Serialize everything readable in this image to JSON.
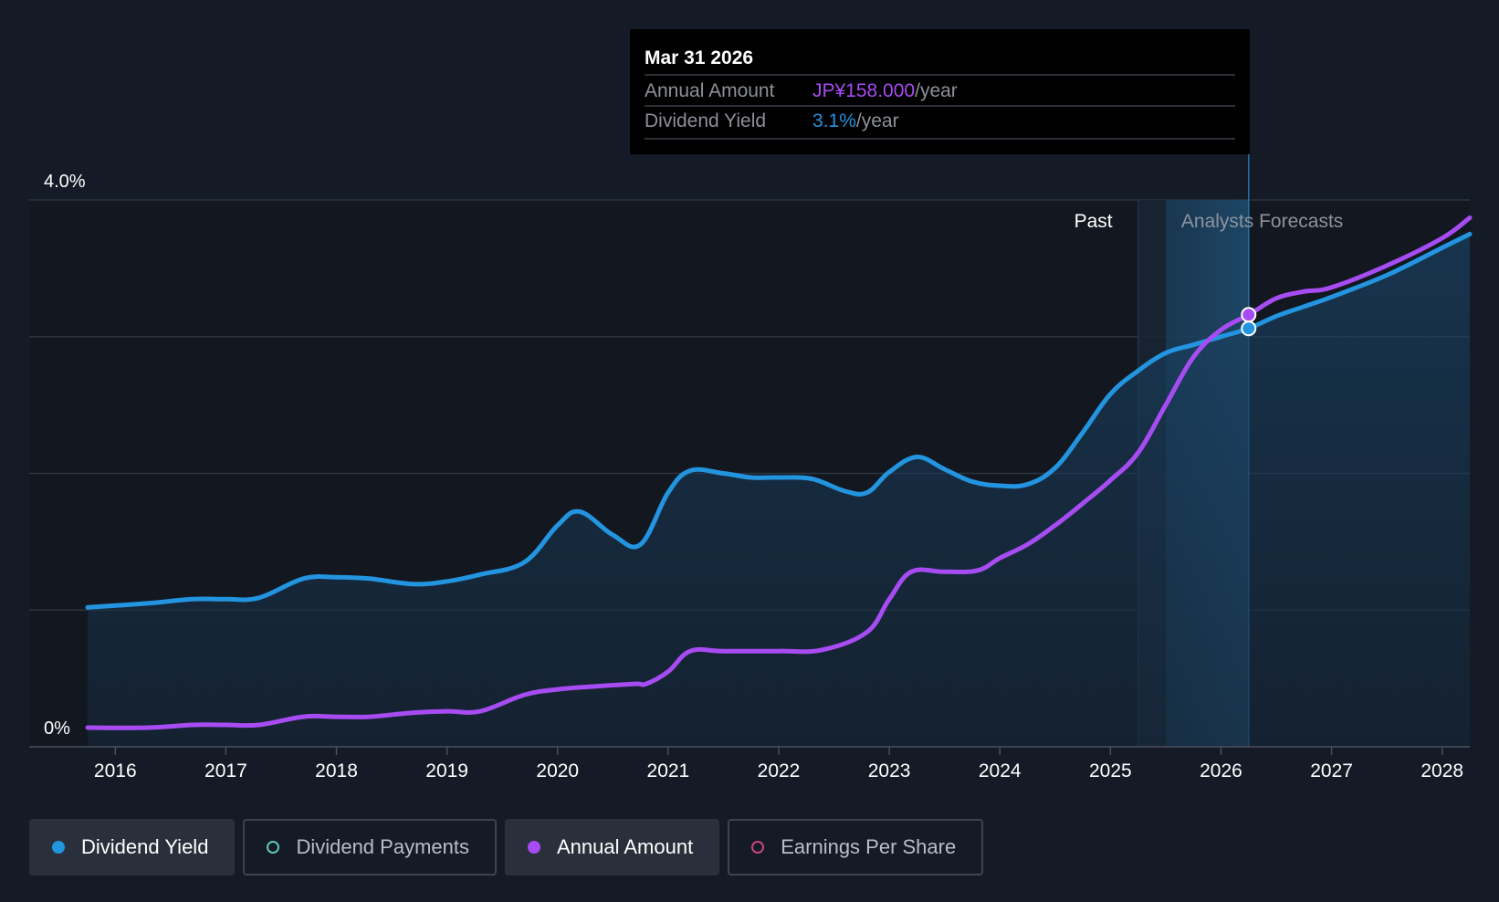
{
  "tooltip": {
    "date": "Mar 31 2026",
    "rows": [
      {
        "label": "Annual Amount",
        "value": "JP¥158.000",
        "suffix": "/year",
        "color": "#a64cf2"
      },
      {
        "label": "Dividend Yield",
        "value": "3.1%",
        "suffix": "/year",
        "color": "#2394df"
      }
    ]
  },
  "region_labels": {
    "past": "Past",
    "forecast": "Analysts Forecasts"
  },
  "legend": [
    {
      "label": "Dividend Yield",
      "color": "#2394df",
      "active": true
    },
    {
      "label": "Dividend Payments",
      "color": "#5fc7b7",
      "active": false
    },
    {
      "label": "Annual Amount",
      "color": "#a64cf2",
      "active": true
    },
    {
      "label": "Earnings Per Share",
      "color": "#c4457a",
      "active": false
    }
  ],
  "chart_data": {
    "type": "line",
    "title": "",
    "xlabel": "",
    "ylabel": "",
    "ylim": [
      0,
      4.0
    ],
    "y_ticks": [
      {
        "value": 0,
        "label": "0%"
      },
      {
        "value": 4.0,
        "label": "4.0%"
      }
    ],
    "y_gridlines": [
      1.0,
      2.0,
      3.0,
      4.0
    ],
    "xlim": [
      2015.75,
      2028.25
    ],
    "x_ticks": [
      "2016",
      "2017",
      "2018",
      "2019",
      "2020",
      "2021",
      "2022",
      "2023",
      "2024",
      "2025",
      "2026",
      "2027",
      "2028"
    ],
    "past_end": 2025.25,
    "forecast_start": 2025.5,
    "highlight_x": 2026.25,
    "series": [
      {
        "name": "Dividend Yield",
        "color": "#2394df",
        "filled": true,
        "points": [
          [
            2015.75,
            1.02
          ],
          [
            2016.3,
            1.05
          ],
          [
            2016.7,
            1.08
          ],
          [
            2017.0,
            1.08
          ],
          [
            2017.3,
            1.09
          ],
          [
            2017.7,
            1.23
          ],
          [
            2018.0,
            1.24
          ],
          [
            2018.3,
            1.23
          ],
          [
            2018.7,
            1.19
          ],
          [
            2019.0,
            1.21
          ],
          [
            2019.3,
            1.26
          ],
          [
            2019.7,
            1.35
          ],
          [
            2020.0,
            1.62
          ],
          [
            2020.2,
            1.72
          ],
          [
            2020.5,
            1.55
          ],
          [
            2020.75,
            1.48
          ],
          [
            2021.0,
            1.86
          ],
          [
            2021.2,
            2.02
          ],
          [
            2021.5,
            2.0
          ],
          [
            2021.75,
            1.97
          ],
          [
            2022.0,
            1.97
          ],
          [
            2022.3,
            1.96
          ],
          [
            2022.6,
            1.87
          ],
          [
            2022.8,
            1.86
          ],
          [
            2023.0,
            2.01
          ],
          [
            2023.25,
            2.12
          ],
          [
            2023.5,
            2.03
          ],
          [
            2023.75,
            1.94
          ],
          [
            2024.0,
            1.91
          ],
          [
            2024.25,
            1.92
          ],
          [
            2024.5,
            2.04
          ],
          [
            2024.75,
            2.3
          ],
          [
            2025.0,
            2.58
          ],
          [
            2025.25,
            2.75
          ],
          [
            2025.5,
            2.88
          ],
          [
            2025.75,
            2.94
          ],
          [
            2026.0,
            3.0
          ],
          [
            2026.25,
            3.06
          ],
          [
            2026.5,
            3.15
          ],
          [
            2026.75,
            3.22
          ],
          [
            2027.0,
            3.29
          ],
          [
            2027.5,
            3.45
          ],
          [
            2028.0,
            3.65
          ],
          [
            2028.25,
            3.75
          ]
        ]
      },
      {
        "name": "Annual Amount",
        "color": "#a64cf2",
        "filled": false,
        "points": [
          [
            2015.75,
            0.14
          ],
          [
            2016.3,
            0.14
          ],
          [
            2016.7,
            0.16
          ],
          [
            2017.0,
            0.16
          ],
          [
            2017.3,
            0.16
          ],
          [
            2017.7,
            0.22
          ],
          [
            2018.0,
            0.22
          ],
          [
            2018.3,
            0.22
          ],
          [
            2018.7,
            0.25
          ],
          [
            2019.0,
            0.26
          ],
          [
            2019.3,
            0.26
          ],
          [
            2019.7,
            0.38
          ],
          [
            2020.0,
            0.42
          ],
          [
            2020.3,
            0.44
          ],
          [
            2020.7,
            0.46
          ],
          [
            2020.8,
            0.46
          ],
          [
            2021.0,
            0.55
          ],
          [
            2021.2,
            0.7
          ],
          [
            2021.5,
            0.7
          ],
          [
            2022.0,
            0.7
          ],
          [
            2022.4,
            0.71
          ],
          [
            2022.8,
            0.84
          ],
          [
            2023.0,
            1.08
          ],
          [
            2023.2,
            1.28
          ],
          [
            2023.5,
            1.28
          ],
          [
            2023.8,
            1.29
          ],
          [
            2024.0,
            1.38
          ],
          [
            2024.25,
            1.48
          ],
          [
            2024.5,
            1.62
          ],
          [
            2024.75,
            1.78
          ],
          [
            2025.0,
            1.95
          ],
          [
            2025.25,
            2.15
          ],
          [
            2025.5,
            2.5
          ],
          [
            2025.75,
            2.85
          ],
          [
            2026.0,
            3.05
          ],
          [
            2026.25,
            3.16
          ],
          [
            2026.5,
            3.28
          ],
          [
            2026.75,
            3.33
          ],
          [
            2027.0,
            3.36
          ],
          [
            2027.5,
            3.52
          ],
          [
            2028.0,
            3.72
          ],
          [
            2028.25,
            3.87
          ]
        ]
      }
    ],
    "highlight_points": [
      {
        "series": "Annual Amount",
        "x": 2026.25,
        "y": 3.16
      },
      {
        "series": "Dividend Yield",
        "x": 2026.25,
        "y": 3.06
      }
    ]
  }
}
